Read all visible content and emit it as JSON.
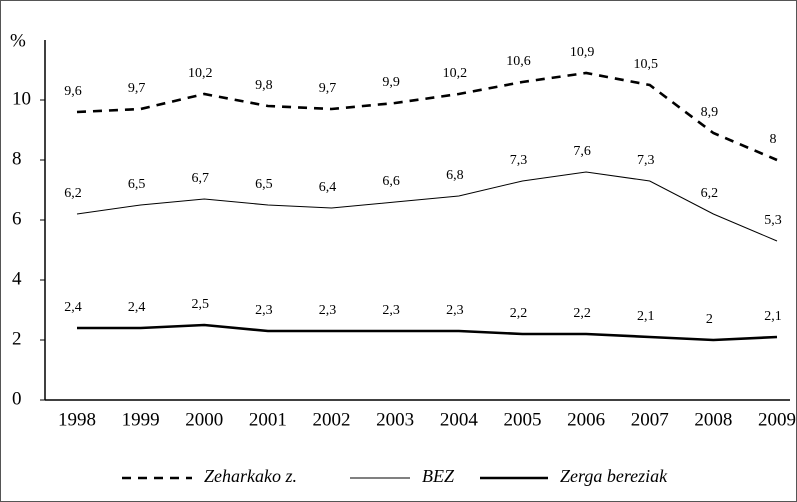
{
  "chart_data": {
    "type": "line",
    "y_label": "%",
    "categories": [
      "1998",
      "1999",
      "2000",
      "2001",
      "2002",
      "2003",
      "2004",
      "2005",
      "2006",
      "2007",
      "2008",
      "2009"
    ],
    "ylim": [
      0,
      12
    ],
    "yticks": [
      0,
      2,
      4,
      6,
      8,
      10
    ],
    "legend": "bottom",
    "series": [
      {
        "name": "Zeharkako z.",
        "color": "#000000",
        "style": "dashed",
        "values": [
          9.6,
          9.7,
          10.2,
          9.8,
          9.7,
          9.9,
          10.2,
          10.6,
          10.9,
          10.5,
          8.9,
          8
        ],
        "value_labels": [
          "9,6",
          "9,7",
          "10,2",
          "9,8",
          "9,7",
          "9,9",
          "10,2",
          "10,6",
          "10,9",
          "10,5",
          "8,9",
          "8"
        ]
      },
      {
        "name": "BEZ",
        "color": "#000000",
        "style": "thin",
        "values": [
          6.2,
          6.5,
          6.7,
          6.5,
          6.4,
          6.6,
          6.8,
          7.3,
          7.6,
          7.3,
          6.2,
          5.3
        ],
        "value_labels": [
          "6,2",
          "6,5",
          "6,7",
          "6,5",
          "6,4",
          "6,6",
          "6,8",
          "7,3",
          "7,6",
          "7,3",
          "6,2",
          "5,3"
        ]
      },
      {
        "name": "Zerga bereziak",
        "color": "#000000",
        "style": "thick",
        "values": [
          2.4,
          2.4,
          2.5,
          2.3,
          2.3,
          2.3,
          2.3,
          2.2,
          2.2,
          2.1,
          2,
          2.1
        ],
        "value_labels": [
          "2,4",
          "2,4",
          "2,5",
          "2,3",
          "2,3",
          "2,3",
          "2,3",
          "2,2",
          "2,2",
          "2,1",
          "2",
          "2,1"
        ]
      }
    ]
  }
}
